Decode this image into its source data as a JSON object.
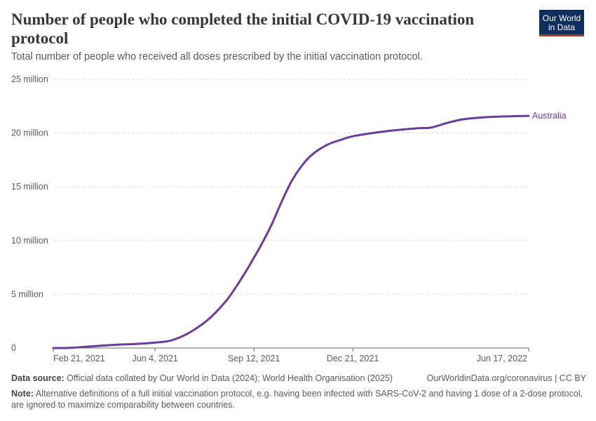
{
  "header": {
    "title": "Number of people who completed the initial COVID-19 vaccination protocol",
    "subtitle": "Total number of people who received all doses prescribed by the initial vaccination protocol."
  },
  "logo": {
    "line1": "Our World",
    "line2": "in Data"
  },
  "footer": {
    "source_label": "Data source:",
    "source_text": "Official data collated by Our World in Data (2024); World Health Organisation (2025)",
    "url": "OurWorldinData.org/coronavirus | CC BY",
    "note_label": "Note:",
    "note_text": "Alternative definitions of a full initial vaccination protocol, e.g. having been infected with SARS-CoV-2 and having 1 dose of a 2-dose protocol, are ignored to maximize comparability between countries."
  },
  "colors": {
    "series": "#6a3d9a",
    "grid": "#dddddd",
    "axis": "#666666",
    "text": "#5b5b5b"
  },
  "chart_data": {
    "type": "line",
    "title": "Number of people who completed the initial COVID-19 vaccination protocol",
    "xlim": [
      "2021-02-21",
      "2022-06-17"
    ],
    "ylim": [
      0,
      25000000
    ],
    "y_ticks": [
      {
        "value": 0,
        "label": "0"
      },
      {
        "value": 5000000,
        "label": "5 million"
      },
      {
        "value": 10000000,
        "label": "10 million"
      },
      {
        "value": 15000000,
        "label": "15 million"
      },
      {
        "value": 20000000,
        "label": "20 million"
      },
      {
        "value": 25000000,
        "label": "25 million"
      }
    ],
    "x_ticks": [
      {
        "value": "2021-02-21",
        "label": "Feb 21, 2021"
      },
      {
        "value": "2021-06-04",
        "label": "Jun 4, 2021"
      },
      {
        "value": "2021-09-12",
        "label": "Sep 12, 2021"
      },
      {
        "value": "2021-12-21",
        "label": "Dec 21, 2021"
      },
      {
        "value": "2022-06-17",
        "label": "Jun 17, 2022"
      }
    ],
    "grid": true,
    "series": [
      {
        "name": "Australia",
        "points": [
          {
            "x": "2021-02-21",
            "y": 0
          },
          {
            "x": "2021-03-10",
            "y": 20000
          },
          {
            "x": "2021-03-31",
            "y": 150000
          },
          {
            "x": "2021-04-25",
            "y": 300000
          },
          {
            "x": "2021-05-15",
            "y": 370000
          },
          {
            "x": "2021-06-04",
            "y": 500000
          },
          {
            "x": "2021-06-20",
            "y": 700000
          },
          {
            "x": "2021-07-05",
            "y": 1250000
          },
          {
            "x": "2021-07-20",
            "y": 2100000
          },
          {
            "x": "2021-08-01",
            "y": 3000000
          },
          {
            "x": "2021-08-15",
            "y": 4400000
          },
          {
            "x": "2021-08-25",
            "y": 5700000
          },
          {
            "x": "2021-09-05",
            "y": 7300000
          },
          {
            "x": "2021-09-12",
            "y": 8400000
          },
          {
            "x": "2021-09-20",
            "y": 9700000
          },
          {
            "x": "2021-09-30",
            "y": 11500000
          },
          {
            "x": "2021-10-10",
            "y": 13600000
          },
          {
            "x": "2021-10-20",
            "y": 15500000
          },
          {
            "x": "2021-10-30",
            "y": 16900000
          },
          {
            "x": "2021-11-10",
            "y": 18000000
          },
          {
            "x": "2021-11-25",
            "y": 18900000
          },
          {
            "x": "2021-12-10",
            "y": 19400000
          },
          {
            "x": "2021-12-21",
            "y": 19700000
          },
          {
            "x": "2022-01-10",
            "y": 20000000
          },
          {
            "x": "2022-02-01",
            "y": 20250000
          },
          {
            "x": "2022-02-25",
            "y": 20450000
          },
          {
            "x": "2022-03-10",
            "y": 20500000
          },
          {
            "x": "2022-03-25",
            "y": 20900000
          },
          {
            "x": "2022-04-10",
            "y": 21250000
          },
          {
            "x": "2022-05-01",
            "y": 21450000
          },
          {
            "x": "2022-05-25",
            "y": 21550000
          },
          {
            "x": "2022-06-17",
            "y": 21600000
          }
        ]
      }
    ]
  }
}
